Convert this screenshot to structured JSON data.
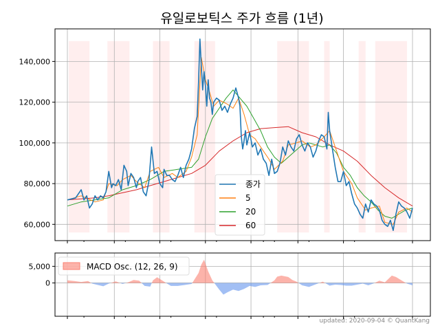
{
  "title": "유일로보틱스 주가 흐름 (1년)",
  "footer": "updated: 2020-09-04 © QuantKang",
  "colors": {
    "close": "#1f77b4",
    "ma5": "#ff7f0e",
    "ma20": "#2ca02c",
    "ma60": "#d62728",
    "band": "#ffeaea",
    "grid": "#b0b0b0",
    "macd_pos": "#fa8072",
    "macd_neg": "#6495ed"
  },
  "chart_data": [
    {
      "type": "line",
      "title": "유일로보틱스 주가 흐름 (1년)",
      "xlabel": "",
      "ylabel": "",
      "x_range": [
        0,
        250
      ],
      "ylim": [
        52000,
        156000
      ],
      "yticks": [
        60000,
        80000,
        100000,
        120000,
        140000
      ],
      "yticklabels": [
        "60,000",
        "80,000",
        "100,000",
        "120,000",
        "140,000"
      ],
      "grid": true,
      "legend": {
        "placement": "lower-center",
        "entries": [
          "종가",
          "5",
          "20",
          "60"
        ]
      },
      "highlight_bands": [
        [
          1,
          16
        ],
        [
          29,
          45
        ],
        [
          62,
          74
        ],
        [
          92,
          107
        ],
        [
          152,
          175
        ],
        [
          186,
          190
        ],
        [
          211,
          216
        ],
        [
          223,
          246
        ]
      ],
      "series": [
        {
          "name": "종가",
          "x": [
            0,
            6,
            10,
            12,
            14,
            16,
            18,
            20,
            22,
            24,
            26,
            28,
            30,
            32,
            33,
            35,
            37,
            39,
            41,
            43,
            44,
            46,
            48,
            50,
            51,
            53,
            55,
            57,
            59,
            61,
            63,
            65,
            67,
            69,
            70,
            72,
            74,
            76,
            78,
            80,
            82,
            84,
            86,
            88,
            90,
            92,
            94,
            95,
            96,
            97,
            98,
            99,
            100,
            101,
            102,
            103,
            104,
            105,
            106,
            108,
            110,
            112,
            114,
            116,
            118,
            120,
            122,
            124,
            125,
            126,
            127,
            128,
            129,
            130,
            131,
            132,
            134,
            136,
            138,
            140,
            142,
            144,
            146,
            148,
            150,
            152,
            154,
            156,
            158,
            160,
            162,
            164,
            166,
            168,
            170,
            172,
            174,
            176,
            178,
            180,
            182,
            184,
            186,
            188,
            189,
            190,
            192,
            194,
            196,
            198,
            200,
            202,
            204,
            206,
            208,
            210,
            212,
            214,
            216,
            218,
            220,
            222,
            224,
            226,
            228,
            230,
            232,
            234,
            236,
            238,
            240,
            242,
            244,
            246,
            248,
            250
          ],
          "values": [
            72000,
            73000,
            77000,
            72000,
            74000,
            68000,
            70000,
            74000,
            72000,
            74000,
            73000,
            76000,
            86000,
            78000,
            80000,
            79000,
            82000,
            77000,
            89000,
            86000,
            79000,
            85000,
            83000,
            78000,
            81000,
            83000,
            76000,
            74000,
            81000,
            98000,
            85000,
            86000,
            80000,
            78000,
            87000,
            84000,
            84000,
            82000,
            81000,
            84000,
            88000,
            83000,
            89000,
            92000,
            97000,
            107000,
            113000,
            130000,
            151000,
            138000,
            126000,
            135000,
            128000,
            118000,
            131000,
            122000,
            120000,
            114000,
            120000,
            122000,
            121000,
            116000,
            118000,
            115000,
            119000,
            122000,
            127000,
            122000,
            118000,
            103000,
            97000,
            101000,
            106000,
            99000,
            102000,
            105000,
            98000,
            100000,
            94000,
            97000,
            92000,
            90000,
            84000,
            92000,
            85000,
            86000,
            90000,
            98000,
            94000,
            101000,
            98000,
            96000,
            102000,
            104000,
            99000,
            96000,
            100000,
            98000,
            93000,
            96000,
            101000,
            104000,
            103000,
            97000,
            115000,
            106000,
            97000,
            88000,
            81000,
            81000,
            86000,
            79000,
            81000,
            75000,
            70000,
            68000,
            65000,
            63000,
            70000,
            66000,
            72000,
            70000,
            69000,
            67000,
            62000,
            60000,
            59000,
            62000,
            57000,
            65000,
            71000,
            69000,
            68000,
            66000,
            63000,
            68000
          ],
          "color": "#1f77b4"
        },
        {
          "name": "5",
          "x": [
            0,
            10,
            20,
            26,
            30,
            36,
            40,
            46,
            50,
            56,
            60,
            66,
            70,
            76,
            80,
            86,
            90,
            94,
            97,
            100,
            103,
            106,
            110,
            116,
            120,
            124,
            128,
            132,
            136,
            140,
            146,
            150,
            156,
            160,
            166,
            170,
            176,
            180,
            186,
            190,
            196,
            200,
            206,
            210,
            216,
            220,
            226,
            230,
            236,
            240,
            246,
            250
          ],
          "values": [
            72000,
            74000,
            71000,
            72000,
            80000,
            79000,
            82000,
            84000,
            81000,
            78000,
            86000,
            88000,
            83000,
            85000,
            83000,
            86000,
            93000,
            104000,
            142000,
            131000,
            125000,
            118000,
            121000,
            119000,
            117000,
            122000,
            114000,
            104000,
            102000,
            98000,
            92000,
            87000,
            91000,
            99000,
            100000,
            101000,
            98000,
            99000,
            103000,
            106000,
            94000,
            86000,
            80000,
            73000,
            67000,
            68000,
            69000,
            61000,
            60000,
            66000,
            68000,
            66000
          ],
          "color": "#ff7f0e"
        },
        {
          "name": "20",
          "x": [
            0,
            10,
            20,
            30,
            40,
            50,
            60,
            70,
            80,
            90,
            95,
            100,
            105,
            110,
            115,
            120,
            125,
            130,
            135,
            140,
            145,
            150,
            155,
            160,
            165,
            170,
            175,
            180,
            185,
            190,
            195,
            200,
            205,
            210,
            215,
            220,
            225,
            230,
            235,
            240,
            245,
            250
          ],
          "values": [
            69000,
            71000,
            72000,
            73000,
            77000,
            79000,
            82000,
            86000,
            87000,
            88000,
            92000,
            103000,
            112000,
            117000,
            122000,
            126000,
            122000,
            118000,
            112000,
            106000,
            98000,
            93000,
            90000,
            93000,
            96000,
            99000,
            100000,
            99000,
            98000,
            99000,
            95000,
            88000,
            84000,
            78000,
            74000,
            71000,
            67000,
            64000,
            63000,
            65000,
            67000,
            68000
          ],
          "color": "#2ca02c"
        },
        {
          "name": "60",
          "x": [
            0,
            10,
            20,
            30,
            40,
            50,
            60,
            70,
            80,
            90,
            100,
            110,
            120,
            130,
            140,
            150,
            160,
            170,
            180,
            190,
            200,
            210,
            220,
            230,
            240,
            250
          ],
          "values": [
            72000,
            72500,
            73000,
            74000,
            75500,
            77000,
            79000,
            81000,
            83000,
            85000,
            89000,
            96000,
            101000,
            105000,
            107000,
            107500,
            108000,
            105000,
            103000,
            99000,
            96000,
            91000,
            84000,
            78000,
            73000,
            69000
          ],
          "color": "#d62728"
        }
      ]
    },
    {
      "type": "area",
      "title": "",
      "xlabel": "",
      "ylabel": "",
      "x_range": [
        0,
        250
      ],
      "ylim": [
        -10000,
        9000
      ],
      "yticks": [
        0,
        5000
      ],
      "yticklabels": [
        "0",
        "5,000"
      ],
      "grid": true,
      "legend": {
        "placement": "top-left",
        "entries": [
          "MACD Osc. (12, 26, 9)"
        ]
      },
      "series": [
        {
          "name": "MACD Osc. (12, 26, 9)",
          "x": [
            0,
            5,
            10,
            15,
            18,
            22,
            26,
            30,
            35,
            40,
            44,
            48,
            52,
            56,
            60,
            62,
            65,
            70,
            75,
            80,
            85,
            90,
            92,
            95,
            97,
            99,
            102,
            105,
            110,
            113,
            116,
            120,
            124,
            128,
            132,
            136,
            140,
            145,
            150,
            152,
            155,
            160,
            163,
            166,
            170,
            175,
            180,
            185,
            190,
            194,
            198,
            202,
            206,
            210,
            214,
            218,
            222,
            226,
            230,
            235,
            238,
            242,
            246,
            250
          ],
          "values": [
            800,
            600,
            300,
            600,
            -200,
            -600,
            -1000,
            -200,
            500,
            -300,
            200,
            900,
            700,
            -900,
            -1100,
            800,
            1700,
            400,
            -900,
            -900,
            -600,
            -300,
            1000,
            3000,
            5500,
            7000,
            3500,
            800,
            -2000,
            -3500,
            -2800,
            -2000,
            -2400,
            -1800,
            -900,
            -1200,
            -700,
            -600,
            800,
            1900,
            2200,
            1800,
            900,
            400,
            -700,
            -1200,
            -400,
            400,
            -800,
            -500,
            -600,
            -800,
            -800,
            -500,
            -200,
            -700,
            -100,
            700,
            200,
            2200,
            1800,
            800,
            -200,
            -700
          ],
          "pos_color": "#fa8072",
          "neg_color": "#6495ed"
        }
      ]
    }
  ]
}
